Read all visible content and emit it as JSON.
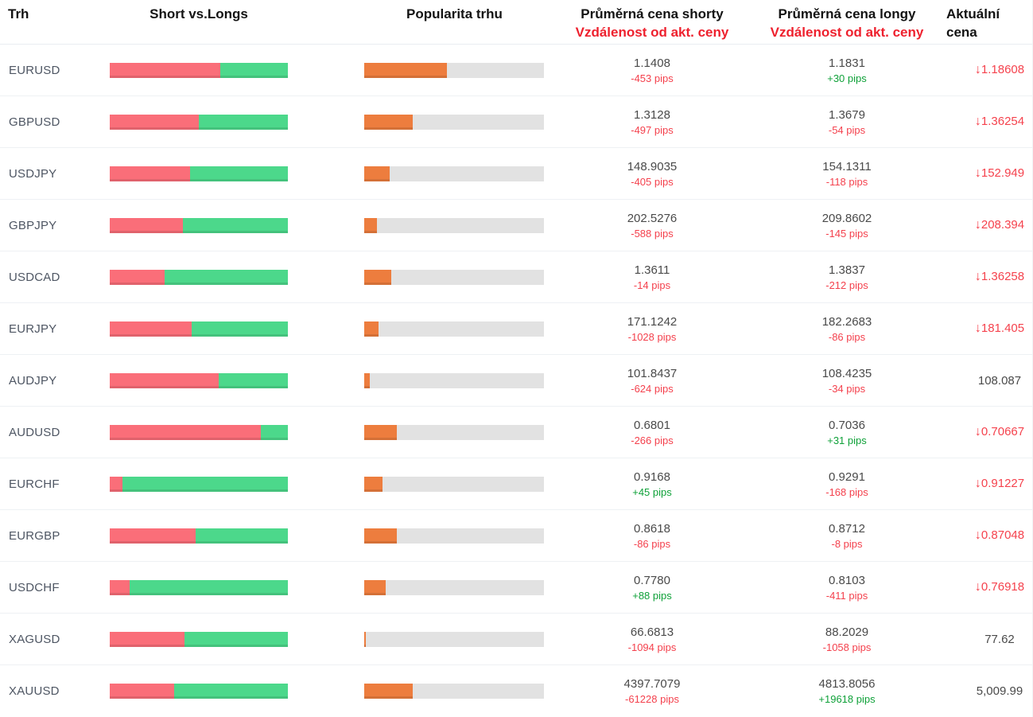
{
  "header": {
    "trh": "Trh",
    "short_vs_longs": "Short vs.Longs",
    "popularity": "Popularita trhu",
    "avg_short_line1": "Průměrná cena shorty",
    "avg_short_line2": "Vzdálenost od akt. ceny",
    "avg_long_line1": "Průměrná cena longy",
    "avg_long_line2": "Vzdálenost od akt. ceny",
    "actual": "Aktuální cena"
  },
  "icons": {
    "down_arrow": "↓"
  },
  "colors": {
    "shorts_bar": "#fa6e79",
    "longs_bar": "#4cd88b",
    "popularity_fill": "#ed7d3e",
    "popularity_track": "#e2e2e2",
    "pips_negative": "#f4414d",
    "pips_positive": "#0fa139",
    "price_falling": "#f5424d",
    "header_red": "#ee212e"
  },
  "rows": [
    {
      "market": "EURUSD",
      "shorts_pct": 62,
      "popularity_pct": 46,
      "avg_short_price": "1.1408",
      "avg_short_pips": "-453 pips",
      "avg_long_price": "1.1831",
      "avg_long_pips": "+30 pips",
      "actual_price": "1.18608",
      "actual_direction": "down"
    },
    {
      "market": "GBPUSD",
      "shorts_pct": 50,
      "popularity_pct": 27,
      "avg_short_price": "1.3128",
      "avg_short_pips": "-497 pips",
      "avg_long_price": "1.3679",
      "avg_long_pips": "-54 pips",
      "actual_price": "1.36254",
      "actual_direction": "down"
    },
    {
      "market": "USDJPY",
      "shorts_pct": 45,
      "popularity_pct": 14,
      "avg_short_price": "148.9035",
      "avg_short_pips": "-405 pips",
      "avg_long_price": "154.1311",
      "avg_long_pips": "-118 pips",
      "actual_price": "152.949",
      "actual_direction": "down"
    },
    {
      "market": "GBPJPY",
      "shorts_pct": 41,
      "popularity_pct": 7,
      "avg_short_price": "202.5276",
      "avg_short_pips": "-588 pips",
      "avg_long_price": "209.8602",
      "avg_long_pips": "-145 pips",
      "actual_price": "208.394",
      "actual_direction": "down"
    },
    {
      "market": "USDCAD",
      "shorts_pct": 31,
      "popularity_pct": 15,
      "avg_short_price": "1.3611",
      "avg_short_pips": "-14 pips",
      "avg_long_price": "1.3837",
      "avg_long_pips": "-212 pips",
      "actual_price": "1.36258",
      "actual_direction": "down"
    },
    {
      "market": "EURJPY",
      "shorts_pct": 46,
      "popularity_pct": 8,
      "avg_short_price": "171.1242",
      "avg_short_pips": "-1028 pips",
      "avg_long_price": "182.2683",
      "avg_long_pips": "-86 pips",
      "actual_price": "181.405",
      "actual_direction": "down"
    },
    {
      "market": "AUDJPY",
      "shorts_pct": 61,
      "popularity_pct": 3,
      "avg_short_price": "101.8437",
      "avg_short_pips": "-624 pips",
      "avg_long_price": "108.4235",
      "avg_long_pips": "-34 pips",
      "actual_price": "108.087",
      "actual_direction": "none"
    },
    {
      "market": "AUDUSD",
      "shorts_pct": 85,
      "popularity_pct": 18,
      "avg_short_price": "0.6801",
      "avg_short_pips": "-266 pips",
      "avg_long_price": "0.7036",
      "avg_long_pips": "+31 pips",
      "actual_price": "0.70667",
      "actual_direction": "down"
    },
    {
      "market": "EURCHF",
      "shorts_pct": 7,
      "popularity_pct": 10,
      "avg_short_price": "0.9168",
      "avg_short_pips": "+45 pips",
      "avg_long_price": "0.9291",
      "avg_long_pips": "-168 pips",
      "actual_price": "0.91227",
      "actual_direction": "down"
    },
    {
      "market": "EURGBP",
      "shorts_pct": 48,
      "popularity_pct": 18,
      "avg_short_price": "0.8618",
      "avg_short_pips": "-86 pips",
      "avg_long_price": "0.8712",
      "avg_long_pips": "-8 pips",
      "actual_price": "0.87048",
      "actual_direction": "down"
    },
    {
      "market": "USDCHF",
      "shorts_pct": 11,
      "popularity_pct": 12,
      "avg_short_price": "0.7780",
      "avg_short_pips": "+88 pips",
      "avg_long_price": "0.8103",
      "avg_long_pips": "-411 pips",
      "actual_price": "0.76918",
      "actual_direction": "down"
    },
    {
      "market": "XAGUSD",
      "shorts_pct": 42,
      "popularity_pct": 1,
      "avg_short_price": "66.6813",
      "avg_short_pips": "-1094 pips",
      "avg_long_price": "88.2029",
      "avg_long_pips": "-1058 pips",
      "actual_price": "77.62",
      "actual_direction": "none"
    },
    {
      "market": "XAUUSD",
      "shorts_pct": 36,
      "popularity_pct": 27,
      "avg_short_price": "4397.7079",
      "avg_short_pips": "-61228 pips",
      "avg_long_price": "4813.8056",
      "avg_long_pips": "+19618 pips",
      "actual_price": "5,009.99",
      "actual_direction": "none"
    }
  ]
}
